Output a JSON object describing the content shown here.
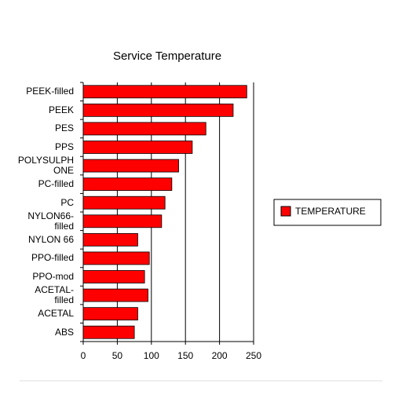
{
  "chart_data": {
    "type": "bar",
    "orientation": "horizontal",
    "title": "Service Temperature",
    "categories": [
      "PEEK-filled",
      "PEEK",
      "PES",
      "PPS",
      "POLYSULPHONE",
      "PC-filled",
      "PC",
      "NYLON66-filled",
      "NYLON 66",
      "PPO-filled",
      "PPO-mod",
      "ACETAL-filled",
      "ACETAL",
      "ABS"
    ],
    "series": [
      {
        "name": "TEMPERATURE",
        "color": "#ff0000",
        "values": [
          240,
          220,
          180,
          160,
          140,
          130,
          120,
          115,
          80,
          97,
          90,
          95,
          80,
          75
        ]
      }
    ],
    "xlim": [
      0,
      250
    ],
    "xticks": [
      0,
      50,
      100,
      150,
      200,
      250
    ],
    "grid": true,
    "legend": "right"
  }
}
